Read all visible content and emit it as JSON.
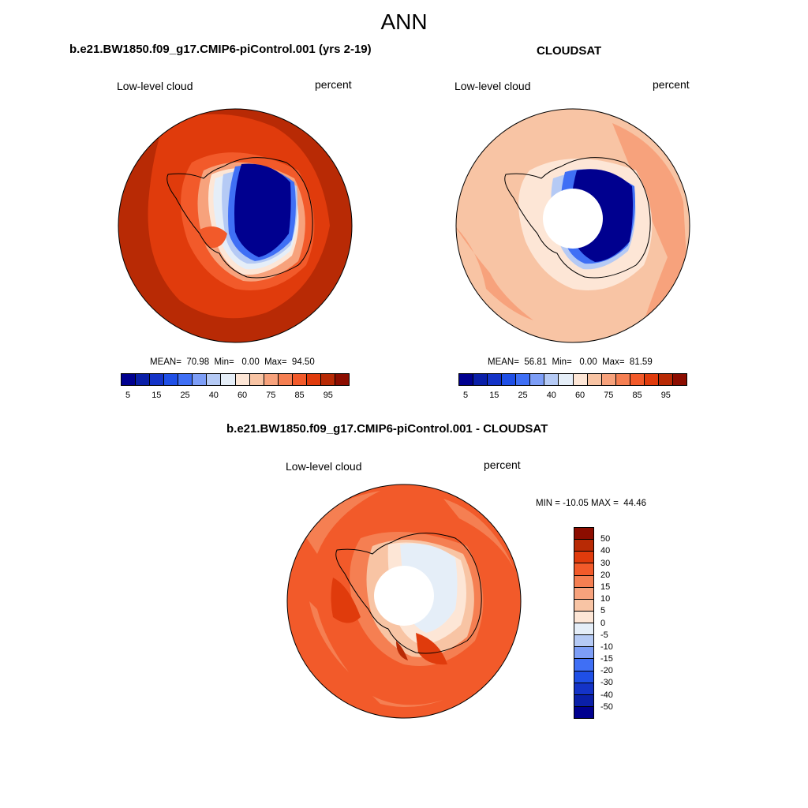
{
  "season": "ANN",
  "panels": [
    {
      "title": "b.e21.BW1850.f09_g17.CMIP6-piControl.001 (yrs 2-19)",
      "left_label": "Low-level cloud",
      "right_label": "percent",
      "stats": "MEAN=  70.98  Min=   0.00  Max=  94.50",
      "mean": 70.98,
      "min": 0.0,
      "max": 94.5
    },
    {
      "title": "CLOUDSAT",
      "left_label": "Low-level cloud",
      "right_label": "percent",
      "stats": "MEAN=  56.81  Min=   0.00  Max=  81.59",
      "mean": 56.81,
      "min": 0.0,
      "max": 81.59
    },
    {
      "title": "b.e21.BW1850.f09_g17.CMIP6-piControl.001 - CLOUDSAT",
      "left_label": "Low-level cloud",
      "right_label": "percent",
      "stats": "MIN = -10.05 MAX =  44.46",
      "min": -10.05,
      "max": 44.46
    }
  ],
  "colorbar_abs": {
    "colors": [
      "#00008f",
      "#0a1fa8",
      "#1433c7",
      "#1f4fe6",
      "#3f6ff5",
      "#7d9ef7",
      "#b5caf5",
      "#e5eef8",
      "#fde6d6",
      "#f8c4a4",
      "#f7a27c",
      "#f57f52",
      "#f25a2a",
      "#e03b0c",
      "#b82a05",
      "#8c0d00"
    ],
    "ticks": [
      "5",
      "15",
      "25",
      "40",
      "60",
      "75",
      "85",
      "95"
    ]
  },
  "colorbar_diff": {
    "colors": [
      "#8c0d00",
      "#b82a05",
      "#e03b0c",
      "#f25a2a",
      "#f57f52",
      "#f7a27c",
      "#f8c4a4",
      "#fde6d6",
      "#e5eef8",
      "#b5caf5",
      "#7d9ef7",
      "#3f6ff5",
      "#1f4fe6",
      "#1433c7",
      "#0a1fa8",
      "#00008f"
    ],
    "ticks": [
      "50",
      "40",
      "30",
      "20",
      "15",
      "10",
      "5",
      "0",
      "-5",
      "-10",
      "-15",
      "-20",
      "-30",
      "-40",
      "-50"
    ]
  }
}
